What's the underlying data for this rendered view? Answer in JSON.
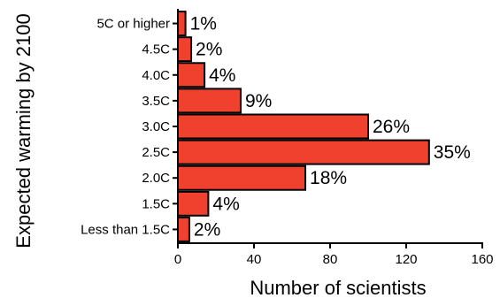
{
  "chart_data": {
    "type": "bar",
    "orientation": "horizontal",
    "categories": [
      "5C or higher",
      "4.5C",
      "4.0C",
      "3.5C",
      "3.0C",
      "2.5C",
      "2.0C",
      "1.5C",
      "Less than 1.5C"
    ],
    "values": [
      4,
      7,
      14,
      33,
      100,
      132,
      67,
      16,
      6
    ],
    "data_labels": [
      "1%",
      "2%",
      "4%",
      "9%",
      "26%",
      "35%",
      "18%",
      "4%",
      "2%"
    ],
    "xlabel": "Number of scientists",
    "ylabel": "Expected warming by 2100",
    "xlim": [
      0,
      160
    ],
    "xticks": [
      0,
      40,
      80,
      120,
      160
    ],
    "bar_color": "#f0412f",
    "grid": false
  }
}
